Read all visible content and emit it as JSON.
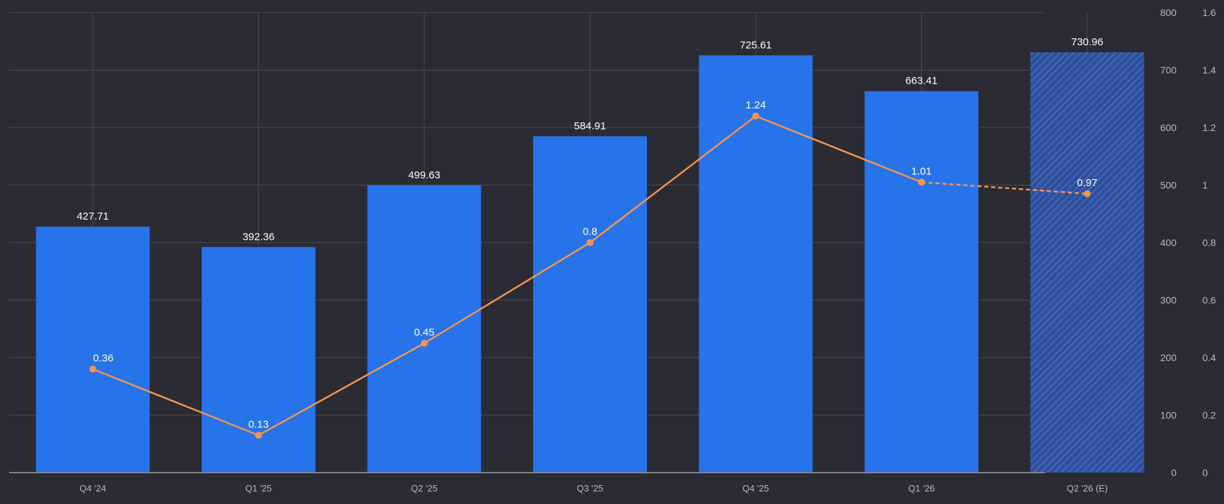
{
  "chart_data": {
    "type": "bar",
    "categories": [
      "Q4 '24",
      "Q1 '25",
      "Q2 '25",
      "Q3 '25",
      "Q4 '25",
      "Q1 '26",
      "Q2 '26 (E)"
    ],
    "series": [
      {
        "type": "bar",
        "axis": "left",
        "values": [
          427.71,
          392.36,
          499.63,
          584.91,
          725.61,
          663.41,
          730.96
        ],
        "value_labels": [
          "427.71",
          "392.36",
          "499.63",
          "584.91",
          "725.61",
          "663.41",
          "730.96"
        ],
        "color": "#2673ea",
        "estimate_indices": [
          6
        ]
      },
      {
        "type": "line",
        "axis": "right",
        "values": [
          0.36,
          0.13,
          0.45,
          0.8,
          1.24,
          1.01,
          0.97
        ],
        "value_labels": [
          "0.36",
          "0.13",
          "0.45",
          "0.8",
          "1.24",
          "1.01",
          "0.97"
        ],
        "color": "#f4944d",
        "dashed_from_index": 5
      }
    ],
    "y_left": {
      "ylim": [
        0,
        800
      ],
      "ticks": [
        "0",
        "100",
        "200",
        "300",
        "400",
        "500",
        "600",
        "700",
        "800"
      ]
    },
    "y_right": {
      "ylim": [
        0,
        1.6
      ],
      "ticks": [
        "0",
        "0.2",
        "0.4",
        "0.6",
        "0.8",
        "1",
        "1.2",
        "1.4",
        "1.6"
      ]
    },
    "grid": true,
    "legend": "none",
    "title": "",
    "xlabel": "",
    "ylabel": ""
  },
  "colors": {
    "background": "#2b2b33",
    "grid": "#4a4a55",
    "axis_text": "#b8b8c0",
    "label_text": "#ffffff",
    "estimate_fill": "#2f4f9a",
    "estimate_hatch": "#4a78d8"
  }
}
